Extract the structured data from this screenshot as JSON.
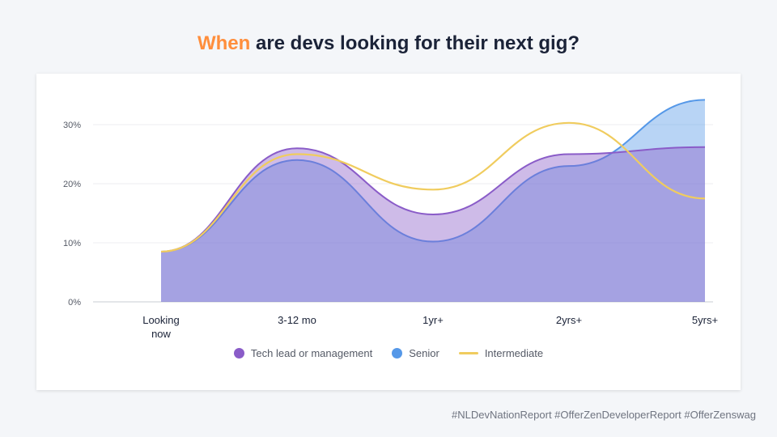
{
  "title": {
    "highlight": "When",
    "rest": " are devs looking for their next gig?"
  },
  "hashtags": "#NLDevNationReport #OfferZenDeveloperReport #OfferZenswag",
  "colors": {
    "accent": "#ff8e3c",
    "tech_lead": "#8a5cc8",
    "senior": "#5598e8",
    "intermediate": "#f0cc5e"
  },
  "chart_data": {
    "type": "area",
    "title": "When are devs looking for their next gig?",
    "categories": [
      "Looking now",
      "3-12 mo",
      "1yr+",
      "2yrs+",
      "5yrs+"
    ],
    "category_lines": [
      [
        "Looking",
        "now"
      ],
      [
        "3-12 mo"
      ],
      [
        "1yr+"
      ],
      [
        "2yrs+"
      ],
      [
        "5yrs+"
      ]
    ],
    "ylim": [
      0,
      35
    ],
    "yticks": [
      0,
      10,
      20,
      30
    ],
    "ytick_labels": [
      "0%",
      "10%",
      "20%",
      "30%"
    ],
    "grid": true,
    "legend_position": "bottom",
    "series": [
      {
        "name": "Tech lead or management",
        "values": [
          8.5,
          26,
          14.8,
          25,
          26.2
        ],
        "style": "area"
      },
      {
        "name": "Senior",
        "values": [
          8.5,
          24,
          10.2,
          23,
          34.2
        ],
        "style": "area"
      },
      {
        "name": "Intermediate",
        "values": [
          8.5,
          25,
          19,
          30.3,
          17.5
        ],
        "style": "line"
      }
    ]
  }
}
